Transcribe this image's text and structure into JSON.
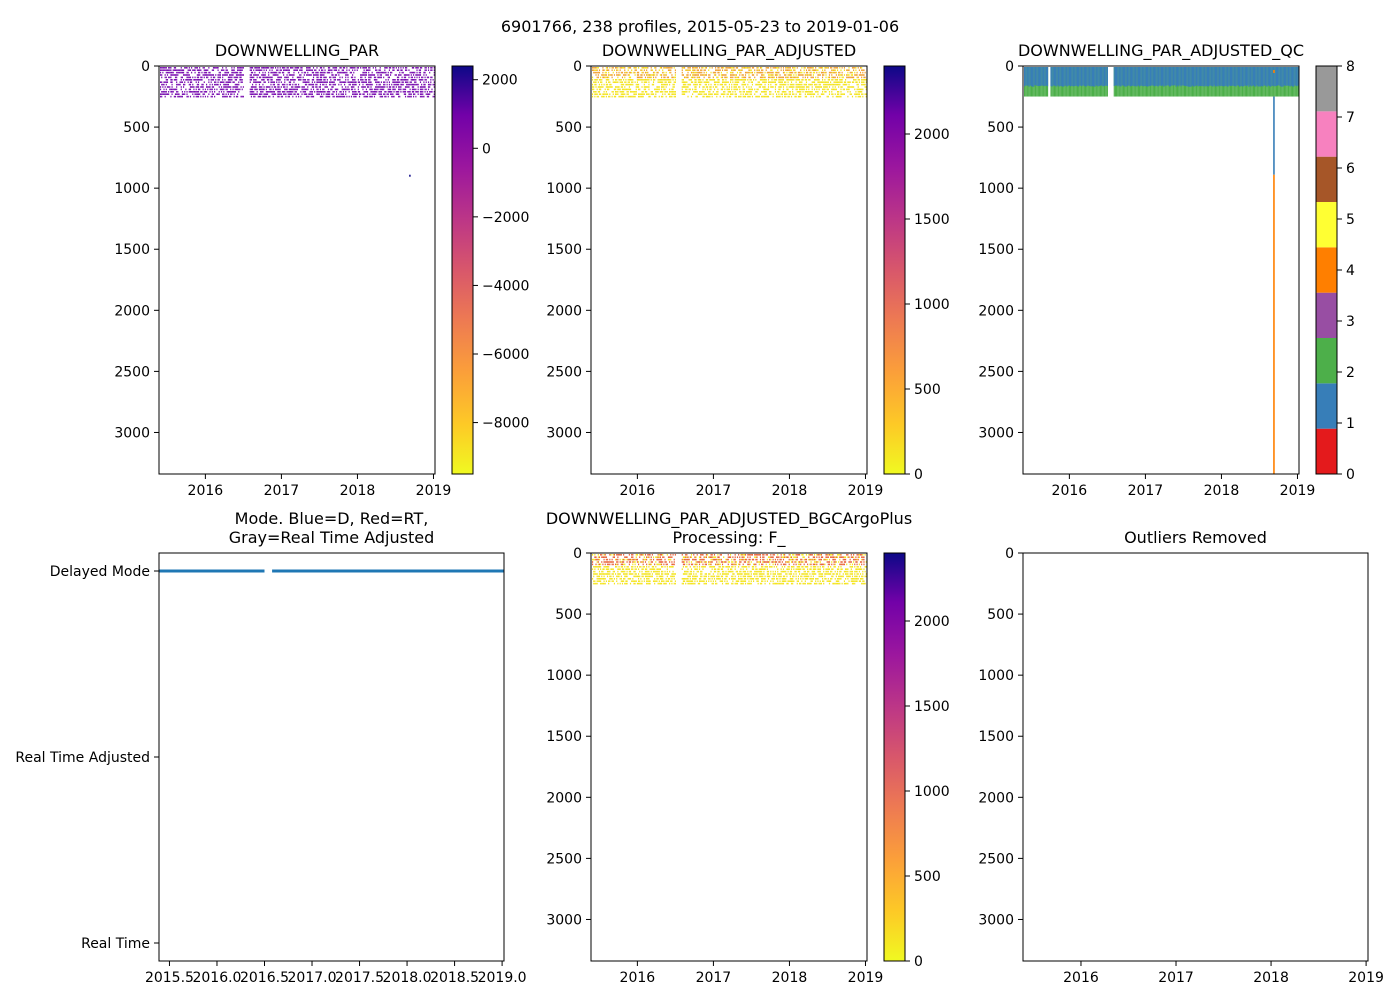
{
  "figure": {
    "suptitle": "6901766, 238 profiles, 2015-05-23 to 2019-01-06"
  },
  "chart_data": [
    {
      "id": "raw",
      "type": "heatmap",
      "title": "DOWNWELLING_PAR",
      "x_ticks": [
        "2016",
        "2017",
        "2018",
        "2019"
      ],
      "x_tick_values": [
        2016.0,
        2017.0,
        2018.0,
        2019.0
      ],
      "xlim": [
        2015.39,
        2019.02
      ],
      "ylim": [
        3340,
        0
      ],
      "y_ticks": [
        "0",
        "500",
        "1000",
        "1500",
        "2000",
        "2500",
        "3000"
      ],
      "y_tick_values": [
        0,
        500,
        1000,
        1500,
        2000,
        2500,
        3000
      ],
      "data_depth_range": [
        0,
        250
      ],
      "gap_years": [
        2016.5,
        2016.58
      ],
      "band_color": "#7a0fb0",
      "isolated_points": [
        {
          "year": 2018.68,
          "depth": 890
        }
      ],
      "colorbar": {
        "colormap": "plasma_r",
        "range": [
          -9500,
          2400
        ],
        "ticks": [
          "2000",
          "0",
          "−2000",
          "−4000",
          "−6000",
          "−8000"
        ],
        "tick_values": [
          2000,
          0,
          -2000,
          -4000,
          -6000,
          -8000
        ]
      }
    },
    {
      "id": "adjusted",
      "type": "heatmap",
      "title": "DOWNWELLING_PAR_ADJUSTED",
      "x_ticks": [
        "2016",
        "2017",
        "2018",
        "2019"
      ],
      "x_tick_values": [
        2016.0,
        2017.0,
        2018.0,
        2019.0
      ],
      "xlim": [
        2015.39,
        2019.02
      ],
      "ylim": [
        3340,
        0
      ],
      "y_ticks": [
        "0",
        "500",
        "1000",
        "1500",
        "2000",
        "2500",
        "3000"
      ],
      "y_tick_values": [
        0,
        500,
        1000,
        1500,
        2000,
        2500,
        3000
      ],
      "data_depth_range": [
        0,
        250
      ],
      "gap_years": [
        2016.5,
        2016.58
      ],
      "band_color": "#f4e41e",
      "surface_color": "#f0a030",
      "colorbar": {
        "colormap": "plasma_r",
        "range": [
          0,
          2400
        ],
        "ticks": [
          "2000",
          "1500",
          "1000",
          "500",
          "0"
        ],
        "tick_values": [
          2000,
          1500,
          1000,
          500,
          0
        ]
      }
    },
    {
      "id": "qc",
      "type": "heatmap",
      "title": "DOWNWELLING_PAR_ADJUSTED_QC",
      "x_ticks": [
        "2016",
        "2017",
        "2018",
        "2019"
      ],
      "x_tick_values": [
        2016.0,
        2017.0,
        2018.0,
        2019.0
      ],
      "xlim": [
        2015.39,
        2019.02
      ],
      "ylim": [
        3340,
        0
      ],
      "y_ticks": [
        "0",
        "500",
        "1000",
        "1500",
        "2000",
        "2500",
        "3000"
      ],
      "y_tick_values": [
        0,
        500,
        1000,
        1500,
        2000,
        2500,
        3000
      ],
      "qc1_depth": 170,
      "qc2_depth": 250,
      "gap_years": [
        [
          2015.72,
          2015.74
        ],
        [
          2016.5,
          2016.58
        ]
      ],
      "orange_profile": {
        "year": 2018.68,
        "qc1_to": 890,
        "qc4_to": 3340
      },
      "colorbar": {
        "range": [
          0,
          8
        ],
        "ticks": [
          "0",
          "1",
          "2",
          "3",
          "4",
          "5",
          "6",
          "7",
          "8"
        ],
        "tick_values": [
          0,
          1,
          2,
          3,
          4,
          5,
          6,
          7,
          8
        ],
        "colors": [
          "#e41a1c",
          "#377eb8",
          "#4daf4a",
          "#984ea3",
          "#ff7f00",
          "#ffff33",
          "#a65628",
          "#f781bf",
          "#999999"
        ]
      }
    },
    {
      "id": "mode",
      "type": "scatter",
      "title": "Mode. Blue=D, Red=RT,\nGray=Real Time Adjusted",
      "categories": [
        "Delayed Mode",
        "Real Time Adjusted",
        "Real Time"
      ],
      "x_ticks": [
        "2015.5",
        "2016.0",
        "2016.5",
        "2017.0",
        "2017.5",
        "2018.0",
        "2018.5",
        "2019.0"
      ],
      "x_tick_values": [
        2015.5,
        2016.0,
        2016.5,
        2017.0,
        2017.5,
        2018.0,
        2018.5,
        2019.0
      ],
      "xlim": [
        2015.39,
        2019.02
      ],
      "series": [
        {
          "name": "Delayed Mode",
          "color": "#1f77b4",
          "segments": [
            [
              2015.39,
              2016.5
            ],
            [
              2016.58,
              2019.02
            ]
          ]
        }
      ]
    },
    {
      "id": "bgcargoplus",
      "type": "heatmap",
      "title": "DOWNWELLING_PAR_ADJUSTED_BGCArgoPlus\nProcessing: F_",
      "x_ticks": [
        "2016",
        "2017",
        "2018",
        "2019"
      ],
      "x_tick_values": [
        2016.0,
        2017.0,
        2018.0,
        2019.0
      ],
      "xlim": [
        2015.39,
        2019.02
      ],
      "ylim": [
        3340,
        0
      ],
      "y_ticks": [
        "0",
        "500",
        "1000",
        "1500",
        "2000",
        "2500",
        "3000"
      ],
      "y_tick_values": [
        0,
        500,
        1000,
        1500,
        2000,
        2500,
        3000
      ],
      "data_depth_range": [
        0,
        250
      ],
      "gap_years": [
        2016.5,
        2016.58
      ],
      "band_color": "#f4e41e",
      "surface_color": "#e8643a",
      "colorbar": {
        "colormap": "plasma_r",
        "range": [
          0,
          2400
        ],
        "ticks": [
          "2000",
          "1500",
          "1000",
          "500",
          "0"
        ],
        "tick_values": [
          2000,
          1500,
          1000,
          500,
          0
        ]
      }
    },
    {
      "id": "outliers",
      "type": "scatter",
      "title": "Outliers Removed",
      "x_ticks": [
        "2016",
        "2017",
        "2018",
        "2019"
      ],
      "x_tick_values": [
        2016.0,
        2017.0,
        2018.0,
        2019.0
      ],
      "xlim": [
        2015.39,
        2019.02
      ],
      "ylim": [
        3340,
        0
      ],
      "y_ticks": [
        "0",
        "500",
        "1000",
        "1500",
        "2000",
        "2500",
        "3000"
      ],
      "y_tick_values": [
        0,
        500,
        1000,
        1500,
        2000,
        2500,
        3000
      ],
      "series": []
    }
  ]
}
